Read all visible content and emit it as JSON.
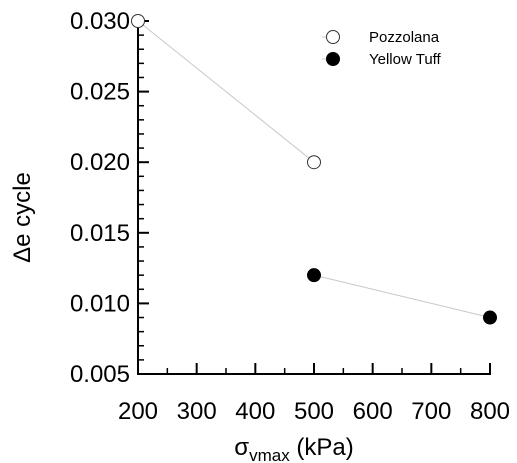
{
  "chart_data": {
    "type": "scatter",
    "x": [
      200,
      500,
      800
    ],
    "series": [
      {
        "name": "Pozzolana",
        "marker": "open-circle",
        "points": [
          {
            "x": 200,
            "y": 0.03
          },
          {
            "x": 500,
            "y": 0.02
          }
        ]
      },
      {
        "name": "Yellow Tuff",
        "marker": "filled-circle",
        "points": [
          {
            "x": 500,
            "y": 0.012
          },
          {
            "x": 800,
            "y": 0.009
          }
        ]
      }
    ],
    "xlim": [
      200,
      800
    ],
    "ylim": [
      0.005,
      0.03
    ],
    "x_ticks": [
      200,
      300,
      400,
      500,
      600,
      700,
      800
    ],
    "x_tick_labels": [
      "200",
      "300",
      "400",
      "500",
      "600",
      "700",
      "800"
    ],
    "y_ticks": [
      0.005,
      0.01,
      0.015,
      0.02,
      0.025,
      0.03
    ],
    "y_tick_labels": [
      "0.005",
      "0.010",
      "0.015",
      "0.020",
      "0.025",
      "0.030"
    ],
    "xlabel_symbol": "σ",
    "xlabel_subscript": "vmax",
    "xlabel_unit": " (kPa)",
    "ylabel": "Δe cycle",
    "grid": false,
    "legend_position": "top-right",
    "connector_color": "#c8c8c8",
    "axis_color": "#000000"
  }
}
